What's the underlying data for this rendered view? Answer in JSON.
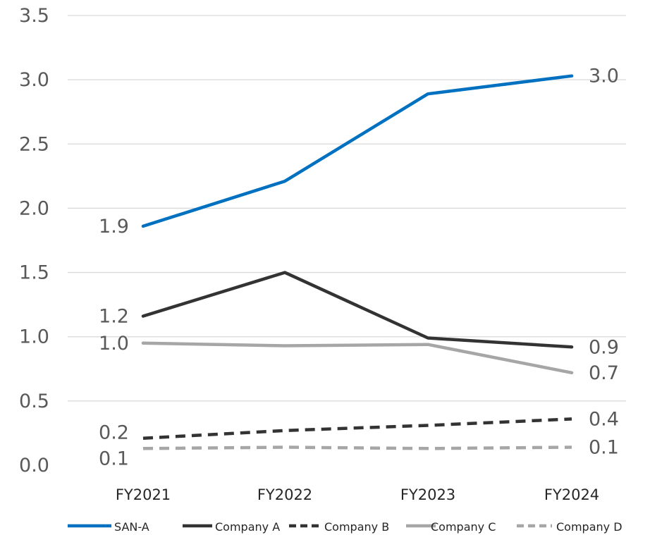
{
  "chart_data": {
    "type": "line",
    "categories": [
      "FY2021",
      "FY2022",
      "FY2023",
      "FY2024"
    ],
    "ylim": [
      0,
      3.5
    ],
    "yticks": [
      "0.0",
      "0.5",
      "1.0",
      "1.5",
      "2.0",
      "2.5",
      "3.0",
      "3.5"
    ],
    "grid": true,
    "legend_position": "bottom",
    "series": [
      {
        "name": "SAN-A",
        "values": [
          1.86,
          2.21,
          2.89,
          3.03
        ],
        "color": "#0070c0",
        "dash": "solid",
        "labels": [
          {
            "index": 0,
            "text": "1.9",
            "side": "left"
          },
          {
            "index": 3,
            "text": "3.0",
            "side": "right"
          }
        ]
      },
      {
        "name": "Company A",
        "values": [
          1.16,
          1.5,
          0.99,
          0.92
        ],
        "color": "#333333",
        "dash": "solid",
        "labels": [
          {
            "index": 0,
            "text": "1.2",
            "side": "left"
          },
          {
            "index": 3,
            "text": "0.9",
            "side": "right"
          }
        ]
      },
      {
        "name": "Company B",
        "values": [
          0.21,
          0.27,
          0.31,
          0.36
        ],
        "color": "#333333",
        "dash": "dashed",
        "labels": [
          {
            "index": 0,
            "text": "0.2",
            "side": "left"
          },
          {
            "index": 3,
            "text": "0.4",
            "side": "right"
          }
        ]
      },
      {
        "name": "Company C",
        "values": [
          0.95,
          0.93,
          0.94,
          0.72
        ],
        "color": "#a6a6a6",
        "dash": "solid",
        "labels": [
          {
            "index": 0,
            "text": "1.0",
            "side": "left"
          },
          {
            "index": 3,
            "text": "0.7",
            "side": "right"
          }
        ]
      },
      {
        "name": "Company D",
        "values": [
          0.13,
          0.14,
          0.13,
          0.14
        ],
        "color": "#a6a6a6",
        "dash": "dashed",
        "labels": [
          {
            "index": 0,
            "text": "0.1",
            "side": "left"
          },
          {
            "index": 3,
            "text": "0.1",
            "side": "right"
          }
        ]
      }
    ]
  }
}
